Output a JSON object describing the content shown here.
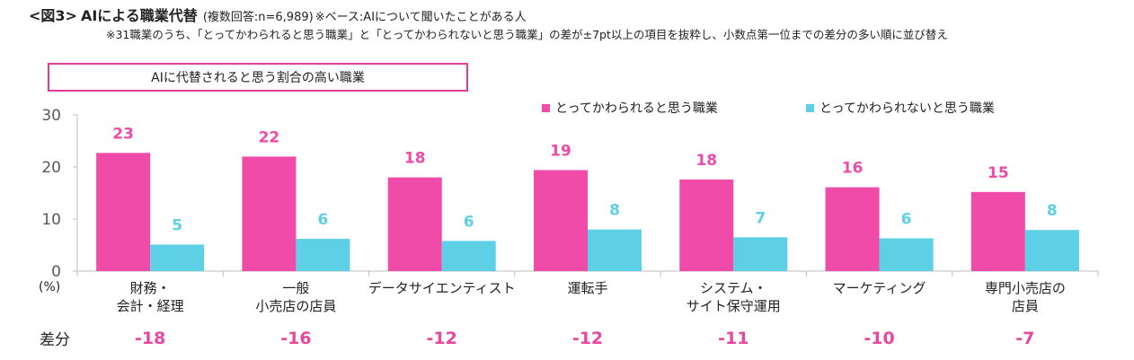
{
  "header": {
    "figure_label": "<図3>",
    "title": "AIによる職業代替",
    "subtitle": "(複数回答:n=6,989)",
    "base": "※ベース:AIについて聞いたことがある人",
    "note": "※31職業のうち、「とってかわられると思う職業」と「とってかわられないと思う職業」の差が±7pt以上の項目を抜粋し、小数点第一位までの差分の多い順に並び替え"
  },
  "box_label": "AIに代替されると思う割合の高い職業",
  "unit_label": "(%)",
  "diff_row_label": "差分",
  "colors": {
    "replaced": "#f04ba8",
    "not_replaced": "#5ed0e6",
    "diff_text": "#e9479f",
    "value_cyan": "#5ed0e6",
    "axis": "#bfbfbf",
    "tick_text": "#595959"
  },
  "chart_data": {
    "type": "bar",
    "categories": [
      [
        "財務・",
        "会計・経理"
      ],
      [
        "一般",
        "小売店の店員"
      ],
      [
        "データサイエンティスト"
      ],
      [
        "運転手"
      ],
      [
        "システム・",
        "サイト保守運用"
      ],
      [
        "マーケティング"
      ],
      [
        "専門小売店の",
        "店員"
      ]
    ],
    "series": [
      {
        "name": "とってかわられると思う職業",
        "values": [
          22.7,
          22.0,
          18.0,
          19.4,
          17.6,
          16.1,
          15.2
        ],
        "labels": [
          "23",
          "22",
          "18",
          "19",
          "18",
          "16",
          "15"
        ]
      },
      {
        "name": "とってかわられないと思う職業",
        "values": [
          5.1,
          6.2,
          5.8,
          8.0,
          6.5,
          6.3,
          7.9
        ],
        "labels": [
          "5",
          "6",
          "6",
          "8",
          "7",
          "6",
          "8"
        ]
      }
    ],
    "differences": [
      "-18",
      "-16",
      "-12",
      "-12",
      "-11",
      "-10",
      "-7"
    ],
    "y_ticks": [
      0,
      10,
      20,
      30
    ],
    "ylim": [
      0,
      30
    ],
    "grid": false,
    "legend_position": "top-right"
  }
}
